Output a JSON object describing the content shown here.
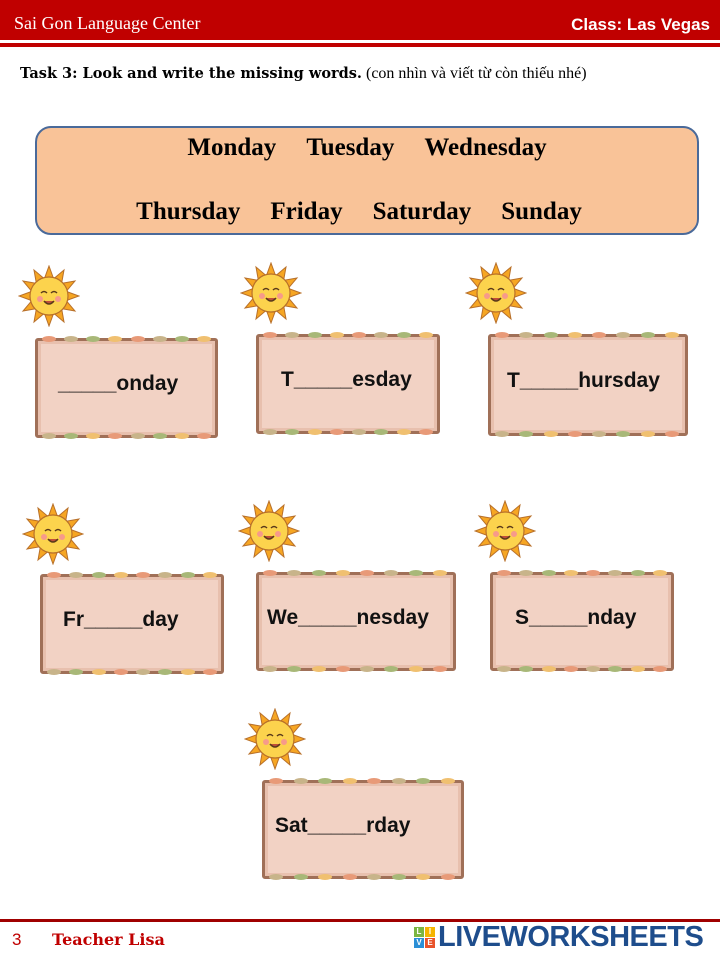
{
  "header": {
    "school": "Sai Gon Language Center",
    "class_label": "Class: Las Vegas"
  },
  "task": {
    "title": "Task 3: Look and write the missing words.",
    "hint": "(con nhìn và viết từ còn thiếu nhé)"
  },
  "word_bank": {
    "row1": [
      "Monday",
      "Tuesday",
      "Wednesday"
    ],
    "row2": [
      "Thursday",
      "Friday",
      "Saturday",
      "Sunday"
    ]
  },
  "cards": [
    "_____onday",
    "T_____esday",
    "T_____hursday",
    "Fr_____day",
    "We_____nesday",
    "S_____nday",
    "Sat_____rday"
  ],
  "footer": {
    "page": "3",
    "teacher": "Teacher Lisa",
    "brand": "LIVEWORKSHEETS",
    "logo_letters": [
      "L",
      "I",
      "V",
      "E"
    ]
  },
  "colors": {
    "header_red": "#c00000",
    "word_bank_bg": "#f9c398",
    "board_bg": "#f2d2c4",
    "brand_blue": "#1e4d8c"
  }
}
